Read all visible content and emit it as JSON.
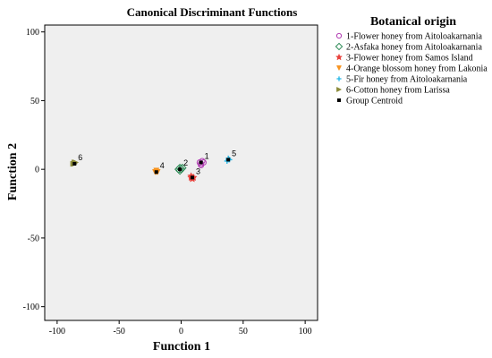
{
  "chart_data": {
    "type": "scatter",
    "title": "Canonical Discriminant Functions",
    "xlabel": "Function 1",
    "ylabel": "Function 2",
    "xlim": [
      -110,
      110
    ],
    "ylim": [
      -110,
      105
    ],
    "xticks": [
      -100,
      -50,
      0,
      50,
      100
    ],
    "yticks": [
      -100,
      -50,
      0,
      50,
      100
    ],
    "grid": false,
    "background": "#efefef",
    "legend_title": "Botanical origin",
    "legend_position": "right",
    "series": [
      {
        "name": "1-Flower honey from Aitoloakarnania",
        "label": "1",
        "marker": "circle",
        "color": "#b23db3",
        "points": [
          [
            16,
            4
          ],
          [
            17,
            6
          ],
          [
            15,
            5
          ],
          [
            16,
            3
          ],
          [
            18,
            5
          ]
        ]
      },
      {
        "name": "2-Asfaka honey from Aitoloakarnania",
        "label": "2",
        "marker": "diamond",
        "color": "#2e8b57",
        "points": [
          [
            -1,
            1
          ],
          [
            -2,
            0
          ],
          [
            0,
            0
          ],
          [
            -1,
            -1
          ],
          [
            1,
            1
          ]
        ]
      },
      {
        "name": "3-Flower honey from Samos Island",
        "label": "3",
        "marker": "star",
        "color": "#e8413c",
        "points": [
          [
            9,
            -6
          ],
          [
            8,
            -5
          ],
          [
            10,
            -6
          ],
          [
            9,
            -7
          ],
          [
            8,
            -6
          ]
        ]
      },
      {
        "name": "4-Orange blossom honey from Lakonia",
        "label": "4",
        "marker": "triangle-down",
        "color": "#f7931e",
        "points": [
          [
            -20,
            -2
          ],
          [
            -21,
            -2
          ],
          [
            -20,
            -1
          ],
          [
            -19,
            -2
          ]
        ]
      },
      {
        "name": "5-Fir honey from Aitoloakarnania",
        "label": "5",
        "marker": "plus",
        "color": "#1fb5e6",
        "points": [
          [
            38,
            7
          ],
          [
            39,
            7
          ],
          [
            37,
            6
          ],
          [
            38,
            8
          ]
        ]
      },
      {
        "name": "6-Cotton honey from Larissa",
        "label": "6",
        "marker": "triangle-right",
        "color": "#8b8b3a",
        "points": [
          [
            -86,
            5
          ],
          [
            -87,
            4
          ],
          [
            -85,
            5
          ],
          [
            -86,
            4
          ]
        ]
      }
    ],
    "centroids": {
      "name": "Group Centroid",
      "marker": "square",
      "color": "#000000",
      "points": [
        [
          16,
          5
        ],
        [
          -1,
          0
        ],
        [
          9,
          -6
        ],
        [
          -20,
          -2
        ],
        [
          38,
          7
        ],
        [
          -86,
          4
        ]
      ],
      "labels": [
        "1",
        "2",
        "3",
        "4",
        "5",
        "6"
      ]
    }
  }
}
